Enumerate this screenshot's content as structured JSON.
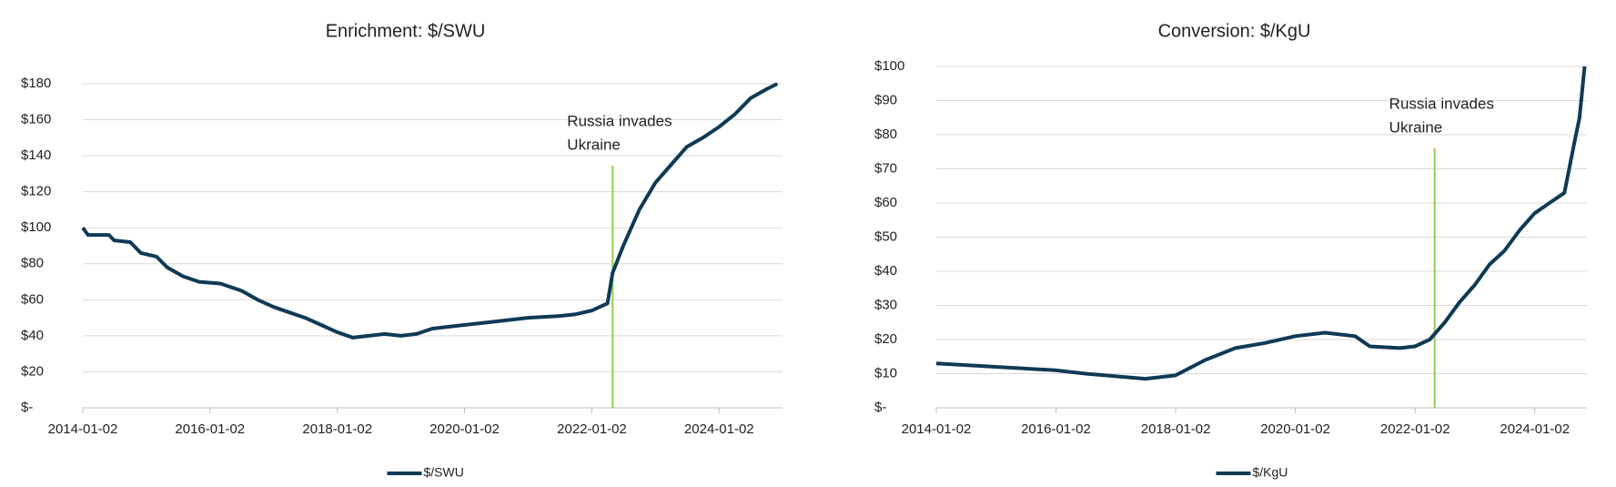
{
  "chart_data": [
    {
      "type": "line",
      "title": "Enrichment: $/SWU",
      "x": [
        "2014-01-02",
        "2014-02-01",
        "2014-06-01",
        "2014-07-01",
        "2014-10-01",
        "2014-12-01",
        "2015-03-01",
        "2015-05-01",
        "2015-08-01",
        "2015-11-01",
        "2016-03-01",
        "2016-07-01",
        "2016-10-01",
        "2017-01-01",
        "2017-04-01",
        "2017-07-01",
        "2017-10-01",
        "2018-01-01",
        "2018-04-01",
        "2018-07-01",
        "2018-10-01",
        "2019-01-01",
        "2019-04-01",
        "2019-07-01",
        "2019-10-01",
        "2020-01-01",
        "2020-07-01",
        "2021-01-01",
        "2021-07-01",
        "2021-10-01",
        "2022-01-01",
        "2022-04-01",
        "2022-05-01",
        "2022-07-01",
        "2022-10-01",
        "2023-01-01",
        "2023-04-01",
        "2023-07-01",
        "2023-10-01",
        "2024-01-01",
        "2024-04-01",
        "2024-07-01",
        "2024-10-01",
        "2024-12-01"
      ],
      "series": [
        {
          "name": "$/SWU",
          "color": "#0f3a55",
          "values": [
            100,
            96,
            96,
            93,
            92,
            86,
            84,
            78,
            73,
            70,
            69,
            65,
            60,
            56,
            53,
            50,
            46,
            42,
            39,
            40,
            41,
            40,
            41,
            44,
            45,
            46,
            48,
            50,
            51,
            52,
            54,
            58,
            75,
            90,
            110,
            125,
            135,
            145,
            150,
            156,
            163,
            172,
            177,
            180
          ]
        }
      ],
      "xlim": [
        "2014-01-02",
        "2024-12-31"
      ],
      "xticks": [
        "2014-01-02",
        "2016-01-02",
        "2018-01-02",
        "2020-01-02",
        "2022-01-02",
        "2024-01-02"
      ],
      "ylim": [
        0,
        180
      ],
      "yticks": [
        {
          "value": 0,
          "label": "$-"
        },
        {
          "value": 20,
          "label": "$20"
        },
        {
          "value": 40,
          "label": "$40"
        },
        {
          "value": 60,
          "label": "$60"
        },
        {
          "value": 80,
          "label": "$80"
        },
        {
          "value": 100,
          "label": "$100"
        },
        {
          "value": 120,
          "label": "$120"
        },
        {
          "value": 140,
          "label": "$140"
        },
        {
          "value": 160,
          "label": "$160"
        },
        {
          "value": 180,
          "label": "$180"
        }
      ],
      "grid": true,
      "annotation": {
        "x": "2022-05-01",
        "text": [
          "Russia invades",
          "Ukraine"
        ],
        "color": "#92d050"
      },
      "legend": "bottom"
    },
    {
      "type": "line",
      "title": "Conversion: $/KgU",
      "x": [
        "2014-01-02",
        "2015-01-01",
        "2016-01-01",
        "2016-07-01",
        "2017-07-01",
        "2018-01-01",
        "2018-07-01",
        "2019-01-01",
        "2019-07-01",
        "2020-01-01",
        "2020-07-01",
        "2021-01-01",
        "2021-04-01",
        "2021-10-01",
        "2022-01-01",
        "2022-04-01",
        "2022-07-01",
        "2022-10-01",
        "2023-01-01",
        "2023-04-01",
        "2023-07-01",
        "2023-10-01",
        "2024-01-01",
        "2024-04-01",
        "2024-07-01",
        "2024-09-01",
        "2024-10-01",
        "2024-11-01"
      ],
      "series": [
        {
          "name": "$/KgU",
          "color": "#0f3a55",
          "values": [
            13,
            12,
            11,
            10,
            8.5,
            9.5,
            14,
            17.5,
            19,
            21,
            22,
            21,
            18,
            17.5,
            18,
            20,
            25,
            31,
            36,
            42,
            46,
            52,
            57,
            60,
            63,
            78,
            85,
            100
          ]
        }
      ],
      "xlim": [
        "2014-01-02",
        "2024-11-15"
      ],
      "xticks": [
        "2014-01-02",
        "2016-01-02",
        "2018-01-02",
        "2020-01-02",
        "2022-01-02",
        "2024-01-02"
      ],
      "ylim": [
        0,
        100
      ],
      "yticks": [
        {
          "value": 0,
          "label": "$-"
        },
        {
          "value": 10,
          "label": "$10"
        },
        {
          "value": 20,
          "label": "$20"
        },
        {
          "value": 30,
          "label": "$30"
        },
        {
          "value": 40,
          "label": "$40"
        },
        {
          "value": 50,
          "label": "$50"
        },
        {
          "value": 60,
          "label": "$60"
        },
        {
          "value": 70,
          "label": "$70"
        },
        {
          "value": 80,
          "label": "$80"
        },
        {
          "value": 90,
          "label": "$90"
        },
        {
          "value": 100,
          "label": "$100"
        }
      ],
      "grid": true,
      "annotation": {
        "x": "2022-05-01",
        "text": [
          "Russia invades",
          "Ukraine"
        ],
        "color": "#92d050"
      },
      "legend": "bottom"
    }
  ]
}
